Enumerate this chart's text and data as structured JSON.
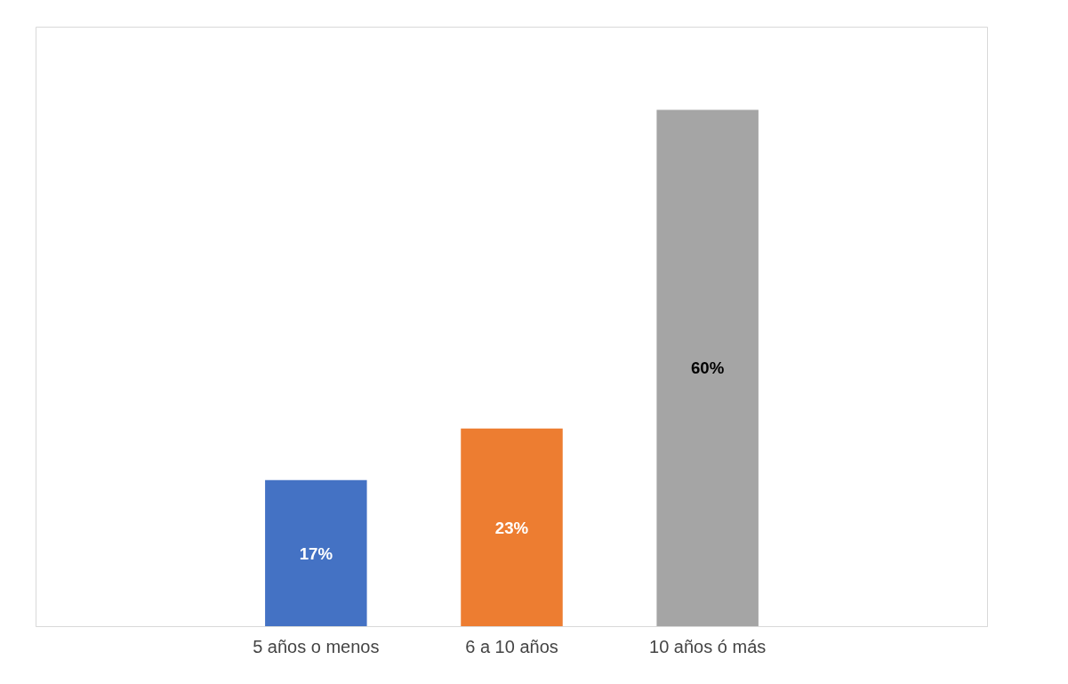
{
  "chart_data": {
    "type": "bar",
    "categories": [
      "5 años o menos",
      "6 a 10 años",
      "10 años ó más"
    ],
    "values": [
      17,
      23,
      60
    ],
    "colors": [
      "#4472c4",
      "#ed7d31",
      "#a5a5a5"
    ],
    "value_labels": [
      "17%",
      "23%",
      "60%"
    ],
    "grid": false,
    "tick_labels": "x"
  }
}
